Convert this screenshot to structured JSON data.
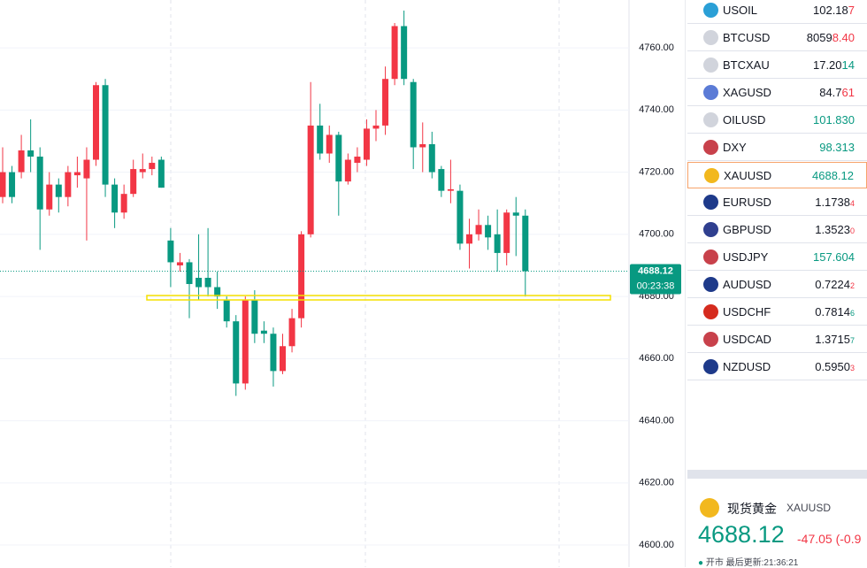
{
  "chart_data": {
    "type": "candlestick",
    "up_color": "#f23645",
    "down_color": "#089981",
    "ylim": [
      4592.9,
      4775.4
    ],
    "yticks": [
      {
        "value": 4600,
        "label": "4600.00"
      },
      {
        "value": 4620,
        "label": "4620.00"
      },
      {
        "value": 4640,
        "label": "4640.00"
      },
      {
        "value": 4660,
        "label": "4660.00"
      },
      {
        "value": 4680,
        "label": "4680.00"
      },
      {
        "value": 4700,
        "label": "4700.00"
      },
      {
        "value": 4720,
        "label": "4720.00"
      },
      {
        "value": 4740,
        "label": "4740.00"
      },
      {
        "value": 4760,
        "label": "4760.00"
      }
    ],
    "grid": true,
    "open": [
      4712,
      4720,
      4720,
      4727,
      4725,
      4708,
      4716,
      4712,
      4719,
      4718,
      4724,
      4748,
      4716,
      4707,
      4713,
      4720,
      4721,
      4724,
      4698,
      4690,
      4691,
      4686,
      4686,
      4683,
      4679,
      4672,
      4652,
      4679,
      4669,
      4668,
      4656,
      4664,
      4673,
      4700,
      4735,
      4726,
      4732,
      4717,
      4723,
      4724,
      4734,
      4735,
      4750,
      4767,
      4749,
      4728,
      4729,
      4721,
      4714,
      4714,
      4697,
      4700,
      4703,
      4700,
      4694,
      4707,
      4706
    ],
    "high": [
      4728,
      4722,
      4732,
      4737,
      4728,
      4720,
      4718,
      4722,
      4725,
      4728,
      4749,
      4750,
      4718,
      4716,
      4724,
      4726,
      4725,
      4725,
      4702,
      4694,
      4692,
      4700,
      4702,
      4688,
      4680,
      4674,
      4680,
      4682,
      4672,
      4670,
      4668,
      4676,
      4701,
      4749,
      4742,
      4735,
      4733,
      4726,
      4728,
      4737,
      4740,
      4754,
      4768,
      4772,
      4750,
      4736,
      4733,
      4722,
      4724,
      4716,
      4705,
      4708,
      4706,
      4708,
      4708,
      4712,
      4708
    ],
    "low": [
      4710,
      4710,
      4718,
      4720,
      4695,
      4706,
      4707,
      4709,
      4715,
      4698,
      4722,
      4712,
      4702,
      4705,
      4712,
      4718,
      4719,
      4715,
      4683,
      4688,
      4673,
      4679,
      4680,
      4676,
      4670,
      4648,
      4650,
      4665,
      4665,
      4651,
      4655,
      4662,
      4670,
      4699,
      4724,
      4723,
      4706,
      4716,
      4720,
      4722,
      4730,
      4732,
      4748,
      4748,
      4721,
      4720,
      4718,
      4712,
      4710,
      4695,
      4689,
      4698,
      4695,
      4688,
      4690,
      4693,
      4680
    ],
    "close": [
      4720,
      4712,
      4727,
      4725,
      4708,
      4716,
      4712,
      4720,
      4720,
      4724,
      4748,
      4716,
      4707,
      4713,
      4721,
      4721,
      4723,
      4715,
      4691,
      4691,
      4684,
      4683,
      4683,
      4680,
      4672,
      4652,
      4679,
      4668,
      4668,
      4656,
      4664,
      4673,
      4700,
      4735,
      4726,
      4732,
      4717,
      4724,
      4725,
      4734,
      4735,
      4750,
      4767,
      4750,
      4728,
      4729,
      4720,
      4714,
      4714.5,
      4697,
      4700,
      4703,
      4699,
      4694,
      4707,
      4706,
      4688.12
    ],
    "last_price": {
      "value": 4688.12,
      "label": "4688.12"
    },
    "countdown": "00:23:38"
  },
  "watchlist": [
    {
      "symbol": "USOIL",
      "head": "102.18",
      "tail": "7",
      "color": "#f23645",
      "icon_color": "#2a9fd6"
    },
    {
      "symbol": "BTCUSD",
      "head": "8059",
      "tail": "8.40",
      "color": "#f23645",
      "icon_color": "#d1d4dc"
    },
    {
      "symbol": "BTCXAU",
      "head": "17.20",
      "tail": "14",
      "color": "#089981",
      "icon_color": "#d1d4dc"
    },
    {
      "symbol": "XAGUSD",
      "head": "84.7",
      "tail": "61",
      "color": "#f23645",
      "icon_color": "#5b7bd6"
    },
    {
      "symbol": "OILUSD",
      "head": "101.830",
      "color": "#089981",
      "icon_color": "#d1d4dc"
    },
    {
      "symbol": "DXY",
      "head": "98.313",
      "color": "#089981",
      "icon_color": "#c8414b"
    },
    {
      "symbol": "XAUUSD",
      "head": "4688.12",
      "color": "#089981",
      "icon_color": "#f2b81e",
      "selected": true
    },
    {
      "symbol": "EURUSD",
      "head": "1.1738",
      "tail": "4",
      "color": "#f23645",
      "icon_color": "#1e3a8a",
      "small": true
    },
    {
      "symbol": "GBPUSD",
      "head": "1.3523",
      "tail": "0",
      "color": "#f23645",
      "icon_color": "#2f3f8f",
      "small": true
    },
    {
      "symbol": "USDJPY",
      "head": "157.604",
      "color": "#089981",
      "icon_color": "#c8414b"
    },
    {
      "symbol": "AUDUSD",
      "head": "0.7224",
      "tail": "2",
      "color": "#f23645",
      "icon_color": "#1e3a8a",
      "small": true
    },
    {
      "symbol": "USDCHF",
      "head": "0.7814",
      "tail": "6",
      "color": "#089981",
      "icon_color": "#d52b1e",
      "small": true
    },
    {
      "symbol": "USDCAD",
      "head": "1.3715",
      "tail": "7",
      "color": "#089981",
      "icon_color": "#c8414b",
      "small": true
    },
    {
      "symbol": "NZDUSD",
      "head": "0.5950",
      "tail": "3",
      "color": "#f23645",
      "icon_color": "#1e3a8a",
      "small": true
    }
  ],
  "quote": {
    "name": "现货黄金",
    "symbol": "XAUUSD",
    "price": "4688.12",
    "change": "-47.05 (-0.9",
    "dot": "●",
    "status": "开市",
    "updated": "最后更新:21:36:21"
  }
}
